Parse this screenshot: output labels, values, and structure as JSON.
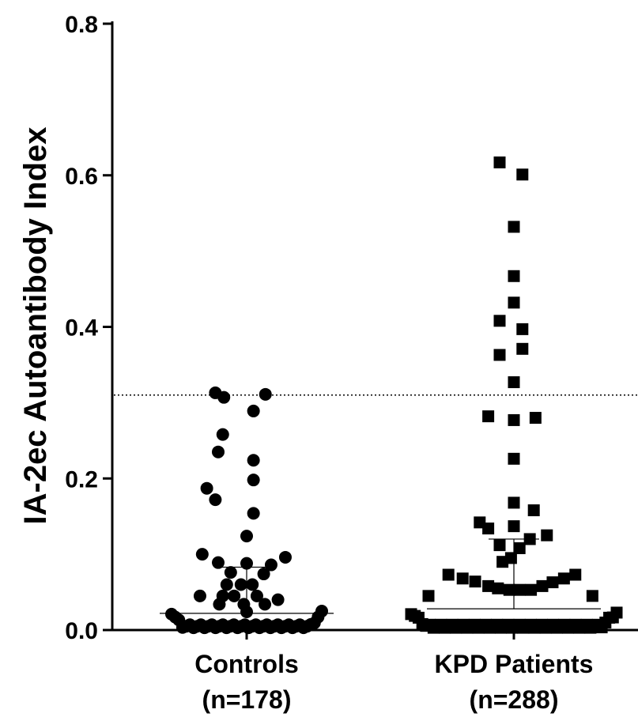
{
  "chart_data": {
    "type": "scatter",
    "title": "",
    "ylabel": "IA-2ec Autoantibody Index",
    "xlabel": "",
    "ylim": [
      0,
      0.8
    ],
    "yticks": [
      "0.0",
      "0.2",
      "0.4",
      "0.6",
      "0.8"
    ],
    "categories": [
      {
        "name": "Controls",
        "n_label": "(n=178)"
      },
      {
        "name": "KPD Patients",
        "n_label": "(n=288)"
      }
    ],
    "threshold": 0.31,
    "grid": false,
    "series": [
      {
        "category": "Controls",
        "marker": "circle",
        "median": 0.022,
        "iqr": [
          0.022,
          0.083
        ],
        "points": [
          {
            "x": -0.55,
            "y": 0.313
          },
          {
            "x": -0.4,
            "y": 0.307
          },
          {
            "x": 0.12,
            "y": 0.289
          },
          {
            "x": 0.33,
            "y": 0.311
          },
          {
            "x": -0.42,
            "y": 0.258
          },
          {
            "x": -0.5,
            "y": 0.235
          },
          {
            "x": 0.12,
            "y": 0.224
          },
          {
            "x": 0.12,
            "y": 0.198
          },
          {
            "x": -0.7,
            "y": 0.187
          },
          {
            "x": -0.55,
            "y": 0.172
          },
          {
            "x": 0.12,
            "y": 0.154
          },
          {
            "x": 0.0,
            "y": 0.124
          },
          {
            "x": -0.78,
            "y": 0.1
          },
          {
            "x": -0.5,
            "y": 0.089
          },
          {
            "x": 0.0,
            "y": 0.088
          },
          {
            "x": 0.43,
            "y": 0.086
          },
          {
            "x": 0.68,
            "y": 0.096
          },
          {
            "x": -0.28,
            "y": 0.076
          },
          {
            "x": 0.3,
            "y": 0.074
          },
          {
            "x": -0.35,
            "y": 0.06
          },
          {
            "x": -0.1,
            "y": 0.06
          },
          {
            "x": 0.1,
            "y": 0.06
          },
          {
            "x": -0.82,
            "y": 0.045
          },
          {
            "x": -0.42,
            "y": 0.045
          },
          {
            "x": -0.22,
            "y": 0.045
          },
          {
            "x": 0.18,
            "y": 0.045
          },
          {
            "x": 0.55,
            "y": 0.04
          },
          {
            "x": -0.48,
            "y": 0.034
          },
          {
            "x": -0.05,
            "y": 0.034
          },
          {
            "x": 0.32,
            "y": 0.034
          },
          {
            "x": 0.0,
            "y": 0.024
          }
        ]
      },
      {
        "category": "KPD Patients",
        "marker": "square",
        "median": 0.028,
        "iqr": [
          0.028,
          0.12
        ],
        "points": [
          {
            "x": -0.25,
            "y": 0.617
          },
          {
            "x": 0.15,
            "y": 0.601
          },
          {
            "x": 0.0,
            "y": 0.532
          },
          {
            "x": 0.0,
            "y": 0.467
          },
          {
            "x": 0.0,
            "y": 0.432
          },
          {
            "x": -0.25,
            "y": 0.408
          },
          {
            "x": 0.15,
            "y": 0.397
          },
          {
            "x": 0.15,
            "y": 0.371
          },
          {
            "x": -0.25,
            "y": 0.363
          },
          {
            "x": 0.0,
            "y": 0.327
          },
          {
            "x": -0.45,
            "y": 0.282
          },
          {
            "x": 0.0,
            "y": 0.277
          },
          {
            "x": 0.38,
            "y": 0.28
          },
          {
            "x": 0.0,
            "y": 0.226
          },
          {
            "x": 0.0,
            "y": 0.168
          },
          {
            "x": 0.35,
            "y": 0.158
          },
          {
            "x": -0.6,
            "y": 0.142
          },
          {
            "x": -0.45,
            "y": 0.134
          },
          {
            "x": 0.0,
            "y": 0.137
          },
          {
            "x": 0.28,
            "y": 0.12
          },
          {
            "x": 0.58,
            "y": 0.125
          },
          {
            "x": -0.25,
            "y": 0.112
          },
          {
            "x": 0.1,
            "y": 0.108
          },
          {
            "x": -0.05,
            "y": 0.095
          },
          {
            "x": -0.2,
            "y": 0.09
          },
          {
            "x": -1.15,
            "y": 0.073
          },
          {
            "x": -0.9,
            "y": 0.068
          },
          {
            "x": -0.68,
            "y": 0.064
          },
          {
            "x": -0.45,
            "y": 0.058
          },
          {
            "x": -0.28,
            "y": 0.055
          },
          {
            "x": -0.08,
            "y": 0.053
          },
          {
            "x": 0.1,
            "y": 0.053
          },
          {
            "x": 0.3,
            "y": 0.053
          },
          {
            "x": 0.5,
            "y": 0.058
          },
          {
            "x": 0.68,
            "y": 0.063
          },
          {
            "x": 0.88,
            "y": 0.068
          },
          {
            "x": 1.08,
            "y": 0.073
          },
          {
            "x": -1.5,
            "y": 0.045
          },
          {
            "x": 1.38,
            "y": 0.045
          }
        ]
      }
    ]
  }
}
